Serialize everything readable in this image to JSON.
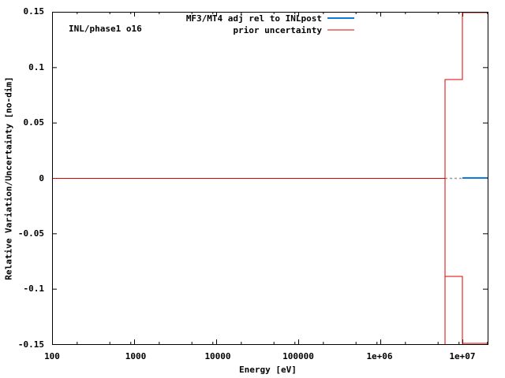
{
  "chart_data": {
    "type": "line",
    "title": "",
    "annotation": "INL/phase1 o16",
    "xlabel": "Energy [eV]",
    "ylabel": "Relative Variation/Uncertainty [no-dim]",
    "xscale": "log",
    "xlim": [
      100,
      20000000
    ],
    "ylim": [
      -0.15,
      0.15
    ],
    "grid": false,
    "legend_position": "top-right",
    "x_ticks": [
      "100",
      "1000",
      "10000",
      "100000",
      "1e+06",
      "1e+07"
    ],
    "y_ticks": [
      "0.15",
      "0.1",
      "0.05",
      "0",
      "-0.05",
      "-0.1",
      "-0.15"
    ],
    "series": [
      {
        "name": "MF3/MT4 adj rel to INLpost",
        "color": "#0a7be0",
        "style": "line",
        "x": [
          10000000,
          20000000
        ],
        "y": [
          0,
          0
        ],
        "note": "dotted gray segment connects from ~6e6 to 1e7 at y=0"
      },
      {
        "name": "prior uncertainty",
        "color": "#e00000",
        "style": "step",
        "x": [
          100,
          6000000,
          10000000,
          20000000
        ],
        "upper": [
          0.0,
          0.089,
          0.148,
          0.148
        ],
        "lower": [
          0.0,
          -0.089,
          -0.148,
          -0.148
        ]
      }
    ]
  },
  "labels": {
    "annotation": "INL/phase1 o16",
    "legend_1": "MF3/MT4 adj rel to INLpost",
    "legend_2": "prior uncertainty",
    "xlabel": "Energy [eV]",
    "ylabel": "Relative Variation/Uncertainty [no-dim]",
    "yt0": "0.15",
    "yt1": "0.1",
    "yt2": "0.05",
    "yt3": "0",
    "yt4": "-0.05",
    "yt5": "-0.1",
    "yt6": "-0.15",
    "xt0": "100",
    "xt1": "1000",
    "xt2": "10000",
    "xt3": "100000",
    "xt4": "1e+06",
    "xt5": "1e+07"
  }
}
